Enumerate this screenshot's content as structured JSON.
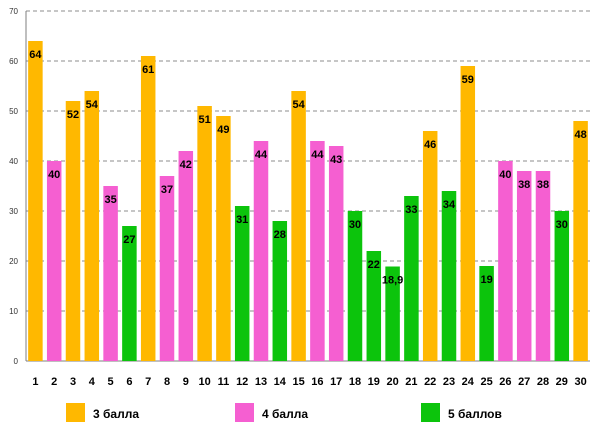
{
  "chart_data": {
    "type": "bar",
    "title": "",
    "xlabel": "",
    "ylabel": "",
    "ylim": [
      0,
      70
    ],
    "y_ticks": [
      "0",
      "10",
      "20",
      "30",
      "40",
      "50",
      "60",
      "70"
    ],
    "grid": true,
    "legend_position": "bottom",
    "categories": [
      "1",
      "2",
      "3",
      "4",
      "5",
      "6",
      "7",
      "8",
      "9",
      "10",
      "11",
      "12",
      "13",
      "14",
      "15",
      "16",
      "17",
      "18",
      "19",
      "20",
      "21",
      "22",
      "23",
      "24",
      "25",
      "26",
      "27",
      "28",
      "29",
      "30"
    ],
    "values": [
      64,
      40,
      52,
      54,
      35,
      27,
      61,
      37,
      42,
      51,
      49,
      31,
      44,
      28,
      54,
      44,
      43,
      30,
      22,
      18.9,
      33,
      46,
      34,
      59,
      19,
      40,
      38,
      38,
      30,
      48
    ],
    "value_labels": [
      "64",
      "40",
      "52",
      "54",
      "35",
      "27",
      "61",
      "37",
      "42",
      "51",
      "49",
      "31",
      "44",
      "28",
      "54",
      "44",
      "43",
      "30",
      "22",
      "18,9",
      "33",
      "46",
      "34",
      "59",
      "19",
      "40",
      "38",
      "38",
      "30",
      "48"
    ],
    "bar_series": [
      0,
      1,
      0,
      0,
      1,
      2,
      0,
      1,
      1,
      0,
      0,
      2,
      1,
      2,
      0,
      1,
      1,
      2,
      2,
      2,
      2,
      0,
      2,
      0,
      2,
      1,
      1,
      1,
      2,
      0
    ],
    "series": [
      {
        "name": "3 балла",
        "color": "#FFB800"
      },
      {
        "name": "4 балла",
        "color": "#F55FD1"
      },
      {
        "name": "5 баллов",
        "color": "#0CC40C"
      }
    ]
  }
}
